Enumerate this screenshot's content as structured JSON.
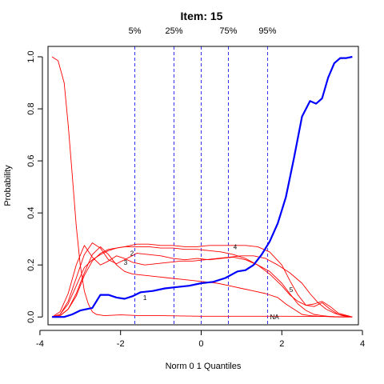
{
  "chart_data": {
    "type": "line",
    "title": "Item:  15",
    "xlabel": "Norm 0 1 Quantiles",
    "ylabel": "Probability",
    "xlim": [
      -3.8,
      3.9
    ],
    "ylim": [
      -0.03,
      1.04
    ],
    "xticks": [
      -4,
      -2,
      0,
      2,
      4
    ],
    "xtick_labels": [
      "-4",
      "-2",
      "0",
      "2",
      "4"
    ],
    "yticks": [
      0.0,
      0.2,
      0.4,
      0.6,
      0.8,
      1.0
    ],
    "ytick_labels": [
      "0.0",
      "0.2",
      "0.4",
      "0.6",
      "0.8",
      "1.0"
    ],
    "grid": false,
    "quantiles": [
      {
        "label": "5%",
        "x": -1.645
      },
      {
        "label": "25%",
        "x": -0.674
      },
      {
        "label": "",
        "x": 0.0
      },
      {
        "label": "75%",
        "x": 0.674
      },
      {
        "label": "95%",
        "x": 1.645
      }
    ],
    "series": [
      {
        "name": "",
        "color": "#0000ff",
        "width": 2.2,
        "label": "",
        "label_at": null,
        "x": [
          -3.7,
          -3.4,
          -3.2,
          -3.0,
          -2.7,
          -2.5,
          -2.3,
          -2.1,
          -1.9,
          -1.7,
          -1.5,
          -1.2,
          -0.9,
          -0.6,
          -0.3,
          0.0,
          0.3,
          0.6,
          0.9,
          1.1,
          1.3,
          1.5,
          1.7,
          1.9,
          2.1,
          2.3,
          2.5,
          2.7,
          2.85,
          3.0,
          3.15,
          3.3,
          3.45,
          3.6,
          3.75
        ],
        "y": [
          0.0,
          0.0,
          0.01,
          0.025,
          0.035,
          0.085,
          0.085,
          0.075,
          0.07,
          0.08,
          0.095,
          0.1,
          0.11,
          0.115,
          0.12,
          0.13,
          0.135,
          0.15,
          0.175,
          0.18,
          0.2,
          0.24,
          0.29,
          0.36,
          0.46,
          0.61,
          0.77,
          0.83,
          0.82,
          0.84,
          0.92,
          0.975,
          0.995,
          0.995,
          1.0
        ]
      },
      {
        "name": "",
        "color": "#ff0000",
        "width": 0.9,
        "label": "NA",
        "label_at": [
          1.65,
          0.0
        ],
        "x": [
          -3.7,
          -3.55,
          -3.4,
          -3.3,
          -3.2,
          -3.1,
          -3.0,
          -2.9,
          -2.8,
          -2.7,
          -2.6,
          -2.4,
          -2.0,
          -1.5,
          -1.0,
          0.0,
          1.0,
          2.0,
          3.0,
          3.75
        ],
        "y": [
          1.0,
          0.985,
          0.9,
          0.74,
          0.55,
          0.35,
          0.2,
          0.1,
          0.05,
          0.02,
          0.01,
          0.005,
          0.008,
          0.005,
          0.005,
          0.003,
          0.003,
          0.003,
          0.002,
          0.0
        ]
      },
      {
        "name": "",
        "color": "#ff0000",
        "width": 0.9,
        "label": "1",
        "label_at": [
          -1.5,
          0.075
        ],
        "x": [
          -3.7,
          -3.5,
          -3.3,
          -3.1,
          -2.9,
          -2.7,
          -2.5,
          -2.3,
          -2.1,
          -1.9,
          -1.7,
          -1.4,
          -1.1,
          -0.8,
          -0.5,
          -0.2,
          0.1,
          0.4,
          0.7,
          1.0,
          1.3,
          1.6,
          1.9,
          2.1,
          2.3,
          2.5,
          2.7,
          2.9,
          3.1,
          3.3,
          3.5,
          3.75
        ],
        "y": [
          0.0,
          0.005,
          0.03,
          0.09,
          0.17,
          0.24,
          0.27,
          0.24,
          0.2,
          0.175,
          0.165,
          0.16,
          0.155,
          0.15,
          0.145,
          0.14,
          0.135,
          0.13,
          0.12,
          0.11,
          0.1,
          0.09,
          0.075,
          0.05,
          0.03,
          0.01,
          0.005,
          0.003,
          0.002,
          0.0,
          0.0,
          0.0
        ]
      },
      {
        "name": "",
        "color": "#ff0000",
        "width": 0.9,
        "label": "2",
        "label_at": [
          -1.82,
          0.245
        ],
        "x": [
          -3.7,
          -3.5,
          -3.3,
          -3.1,
          -2.9,
          -2.7,
          -2.5,
          -2.3,
          -2.1,
          -1.9,
          -1.6,
          -1.3,
          -1.0,
          -0.7,
          -0.4,
          -0.1,
          0.2,
          0.5,
          0.8,
          1.1,
          1.4,
          1.7,
          2.0,
          2.2,
          2.4,
          2.6,
          2.8,
          3.0,
          3.2,
          3.4,
          3.75
        ],
        "y": [
          0.0,
          0.01,
          0.06,
          0.15,
          0.24,
          0.285,
          0.265,
          0.22,
          0.205,
          0.22,
          0.245,
          0.24,
          0.235,
          0.225,
          0.22,
          0.225,
          0.22,
          0.225,
          0.23,
          0.22,
          0.2,
          0.175,
          0.13,
          0.09,
          0.05,
          0.025,
          0.01,
          0.005,
          0.002,
          0.0,
          0.0
        ]
      },
      {
        "name": "",
        "color": "#ff0000",
        "width": 0.9,
        "label": "3",
        "label_at": [
          -1.98,
          0.21
        ],
        "x": [
          -3.7,
          -3.5,
          -3.3,
          -3.1,
          -2.9,
          -2.7,
          -2.5,
          -2.3,
          -2.1,
          -1.9,
          -1.7,
          -1.4,
          -1.1,
          -0.8,
          -0.5,
          -0.2,
          0.1,
          0.4,
          0.7,
          1.0,
          1.3,
          1.6,
          1.9,
          2.2,
          2.5,
          2.7,
          2.9,
          3.1,
          3.3,
          3.5,
          3.75
        ],
        "y": [
          0.0,
          0.02,
          0.09,
          0.2,
          0.275,
          0.23,
          0.2,
          0.215,
          0.235,
          0.225,
          0.21,
          0.2,
          0.205,
          0.21,
          0.215,
          0.215,
          0.22,
          0.225,
          0.23,
          0.235,
          0.235,
          0.225,
          0.2,
          0.17,
          0.13,
          0.09,
          0.055,
          0.03,
          0.015,
          0.005,
          0.0
        ]
      },
      {
        "name": "",
        "color": "#ff0000",
        "width": 0.9,
        "label": "4",
        "label_at": [
          0.74,
          0.27
        ],
        "x": [
          -3.7,
          -3.5,
          -3.3,
          -3.1,
          -2.9,
          -2.7,
          -2.5,
          -2.3,
          -2.1,
          -1.9,
          -1.6,
          -1.3,
          -1.0,
          -0.7,
          -0.4,
          -0.1,
          0.2,
          0.5,
          0.8,
          1.1,
          1.4,
          1.7,
          2.0,
          2.2,
          2.4,
          2.6,
          2.8,
          3.0,
          3.2,
          3.4,
          3.75
        ],
        "y": [
          0.0,
          0.01,
          0.05,
          0.12,
          0.19,
          0.22,
          0.24,
          0.255,
          0.265,
          0.27,
          0.28,
          0.28,
          0.275,
          0.275,
          0.27,
          0.27,
          0.275,
          0.275,
          0.275,
          0.275,
          0.27,
          0.25,
          0.2,
          0.14,
          0.085,
          0.045,
          0.04,
          0.055,
          0.03,
          0.01,
          0.0
        ]
      },
      {
        "name": "",
        "color": "#ff0000",
        "width": 0.9,
        "label": "5",
        "label_at": [
          2.13,
          0.105
        ],
        "x": [
          -3.7,
          -3.5,
          -3.3,
          -3.1,
          -2.9,
          -2.7,
          -2.5,
          -2.3,
          -2.1,
          -1.9,
          -1.6,
          -1.3,
          -1.0,
          -0.7,
          -0.4,
          -0.1,
          0.2,
          0.5,
          0.8,
          1.1,
          1.4,
          1.7,
          2.0,
          2.2,
          2.4,
          2.6,
          2.8,
          3.0,
          3.2,
          3.4,
          3.75
        ],
        "y": [
          0.0,
          0.005,
          0.03,
          0.08,
          0.16,
          0.215,
          0.245,
          0.26,
          0.265,
          0.27,
          0.27,
          0.27,
          0.265,
          0.265,
          0.26,
          0.26,
          0.255,
          0.25,
          0.24,
          0.225,
          0.2,
          0.165,
          0.12,
          0.085,
          0.06,
          0.045,
          0.05,
          0.06,
          0.04,
          0.015,
          0.0
        ]
      }
    ]
  }
}
